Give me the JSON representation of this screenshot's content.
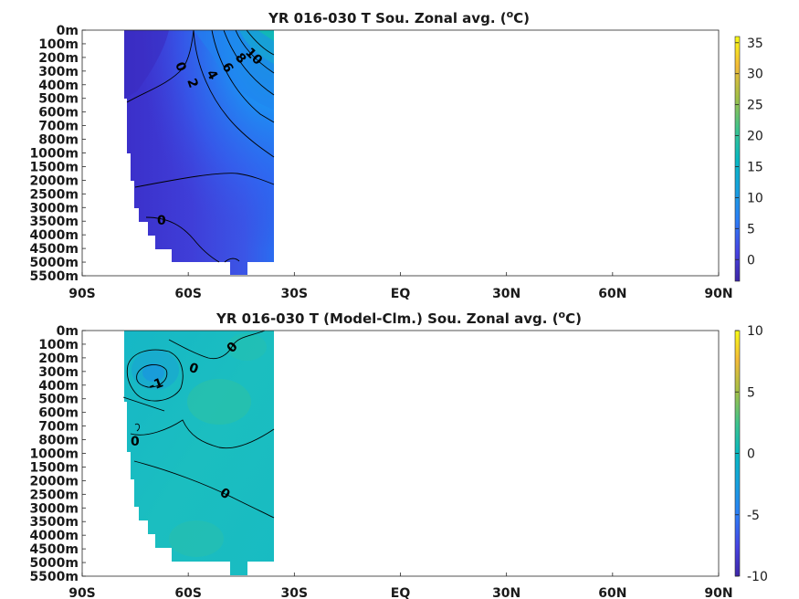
{
  "chart_data": [
    {
      "type": "heatmap",
      "title_main": "YR 016-030 T Sou. Zonal avg. (",
      "title_sup": "o",
      "title_tail": "C)",
      "x_ticks": [
        "90S",
        "60S",
        "30S",
        "EQ",
        "30N",
        "60N",
        "90N"
      ],
      "x_range": [
        -90,
        90
      ],
      "y_ticks": [
        "0m",
        "100m",
        "200m",
        "300m",
        "400m",
        "500m",
        "600m",
        "700m",
        "800m",
        "1000m",
        "1500m",
        "2000m",
        "2500m",
        "3000m",
        "3500m",
        "4000m",
        "4500m",
        "5000m",
        "5500m"
      ],
      "colorbar_ticks": [
        "35",
        "30",
        "25",
        "20",
        "15",
        "10",
        "5",
        "0"
      ],
      "colorbar_range": [
        -3.5,
        36
      ],
      "contour_labels": [
        "0",
        "2",
        "4",
        "6",
        "8",
        "10",
        "0"
      ],
      "data_lat_range": [
        -78,
        -35
      ]
    },
    {
      "type": "heatmap",
      "title_main": "YR 016-030 T (Model-Clm.) Sou. Zonal avg. (",
      "title_sup": "o",
      "title_tail": "C)",
      "x_ticks": [
        "90S",
        "60S",
        "30S",
        "EQ",
        "30N",
        "60N",
        "90N"
      ],
      "x_range": [
        -90,
        90
      ],
      "y_ticks": [
        "0m",
        "100m",
        "200m",
        "300m",
        "400m",
        "500m",
        "600m",
        "700m",
        "800m",
        "1000m",
        "1500m",
        "2000m",
        "2500m",
        "3000m",
        "3500m",
        "4000m",
        "4500m",
        "5000m",
        "5500m"
      ],
      "colorbar_ticks": [
        "10",
        "5",
        "0",
        "-5",
        "-10"
      ],
      "colorbar_range": [
        -10,
        10
      ],
      "contour_labels": [
        "0",
        "0",
        "-1",
        "0",
        "0"
      ],
      "data_lat_range": [
        -78,
        -35
      ]
    }
  ]
}
